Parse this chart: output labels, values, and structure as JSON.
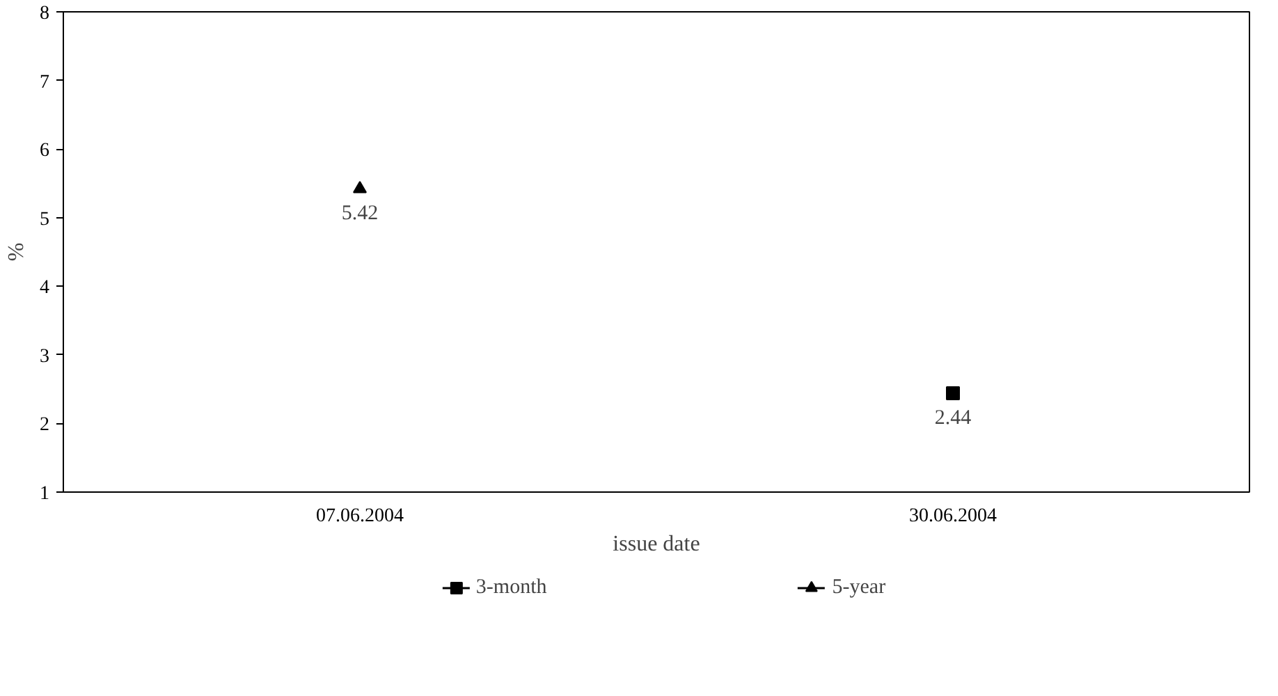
{
  "chart_data": {
    "type": "line",
    "xlabel": "issue date",
    "ylabel": "%",
    "categories": [
      "07.06.2004",
      "30.06.2004"
    ],
    "series": [
      {
        "name": "3-month",
        "color": "#000000",
        "marker": "square",
        "values": [
          null,
          2.44
        ]
      },
      {
        "name": "5-year",
        "color": "#000000",
        "marker": "triangle",
        "values": [
          5.42,
          null
        ]
      }
    ],
    "ylim": [
      1,
      8
    ],
    "yticks": [
      1,
      2,
      3,
      4,
      5,
      6,
      7,
      8
    ],
    "data_labels": true,
    "legend": "bottom",
    "grid": false
  }
}
